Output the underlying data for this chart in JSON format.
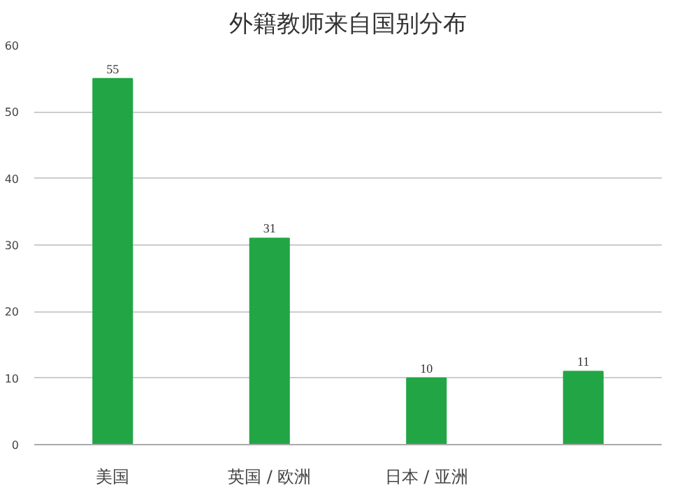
{
  "chart_data": {
    "type": "bar",
    "title": "外籍教师来自国别分布",
    "categories": [
      "美国",
      "英国 / 欧洲",
      "日本 / 亚洲",
      null
    ],
    "values": [
      55,
      31,
      10,
      11
    ],
    "color": "#22a645",
    "ylim": [
      0,
      60
    ],
    "yticks": [
      0,
      10,
      20,
      30,
      40,
      50,
      60
    ],
    "grid": "y",
    "data_labels": true
  }
}
